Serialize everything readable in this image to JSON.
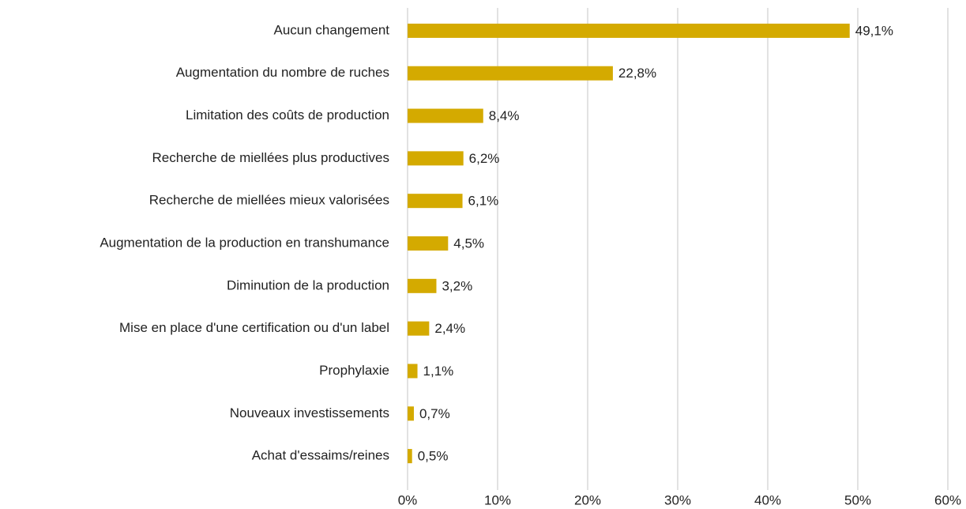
{
  "chart_data": {
    "type": "hbar",
    "categories": [
      "Aucun changement",
      "Augmentation du nombre de ruches",
      "Limitation des coûts de production",
      "Recherche de miellées plus productives",
      "Recherche de miellées mieux valorisées",
      "Augmentation de la production en transhumance",
      "Diminution de la production",
      "Mise en place d'une certification ou d'un label",
      "Prophylaxie",
      "Nouveaux investissements",
      "Achat d'essaims/reines"
    ],
    "values": [
      49.1,
      22.8,
      8.4,
      6.2,
      6.1,
      4.5,
      3.2,
      2.4,
      1.1,
      0.7,
      0.5
    ],
    "value_labels": [
      "49,1%",
      "22,8%",
      "8,4%",
      "6,2%",
      "6,1%",
      "4,5%",
      "3,2%",
      "2,4%",
      "1,1%",
      "0,7%",
      "0,5%"
    ],
    "color": "#d4aa00",
    "xlim": [
      0,
      60
    ],
    "xticks": [
      {
        "value": 0,
        "label": "0%"
      },
      {
        "value": 10,
        "label": "10%"
      },
      {
        "value": 20,
        "label": "20%"
      },
      {
        "value": 30,
        "label": "30%"
      },
      {
        "value": 40,
        "label": "40%"
      },
      {
        "value": 50,
        "label": "50%"
      },
      {
        "value": 60,
        "label": "60%"
      }
    ],
    "grid": true
  }
}
